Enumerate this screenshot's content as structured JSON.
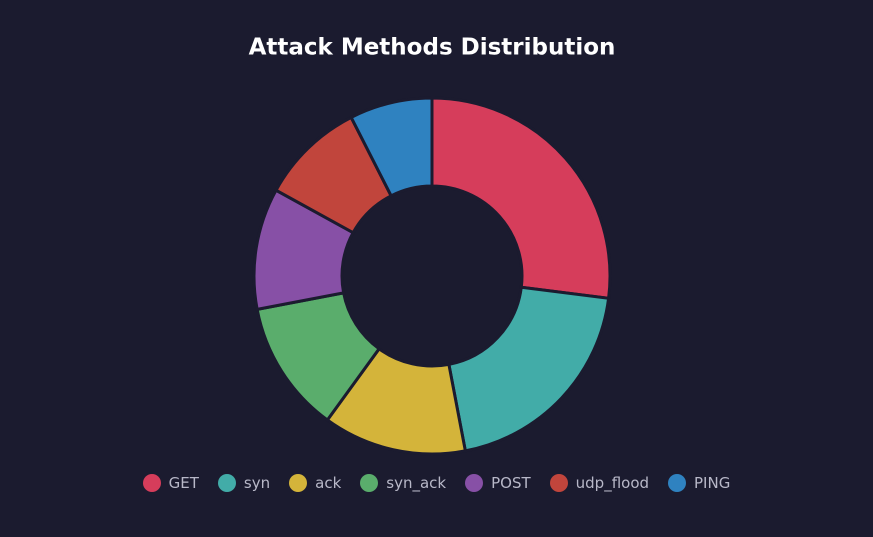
{
  "chart_data": {
    "type": "doughnut",
    "title": "Attack Methods Distribution",
    "categories": [
      "GET",
      "syn",
      "ack",
      "syn_ack",
      "POST",
      "udp_flood",
      "PING"
    ],
    "values": [
      27,
      20,
      13,
      12,
      11,
      9.5,
      7.5
    ],
    "colors": [
      "#d63d5b",
      "#42aca8",
      "#d4b43a",
      "#5aad6c",
      "#8750a6",
      "#c1453c",
      "#2f82c0"
    ],
    "legend": "bottom"
  }
}
